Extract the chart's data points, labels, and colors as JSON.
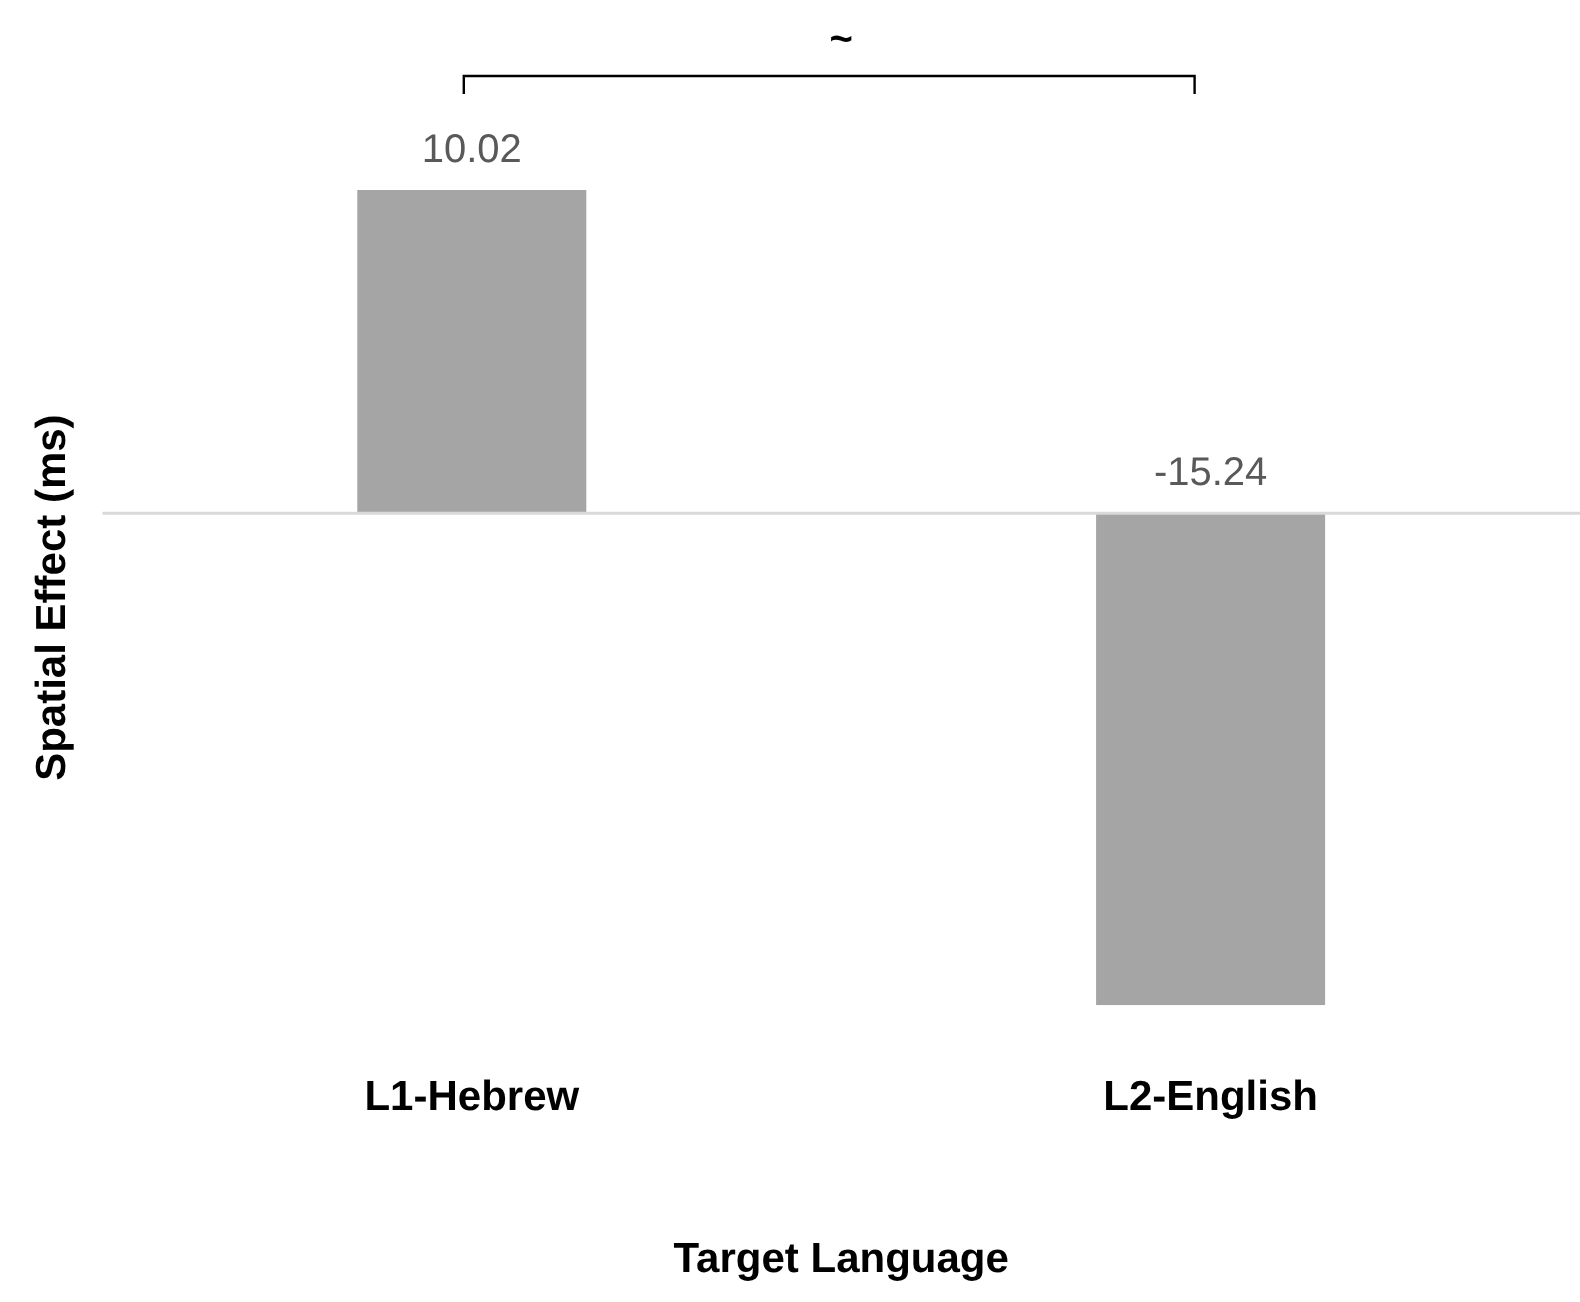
{
  "chart_data": {
    "type": "bar",
    "xlabel": "Target Language",
    "ylabel": "Spatial Effect (ms)",
    "categories": [
      "L1-Hebrew",
      "L2-English"
    ],
    "values": [
      10.02,
      -15.24
    ],
    "color": "#a5a5a5",
    "tick_labels": "x",
    "grid": false,
    "legend": false,
    "data_labels": true,
    "annotations": [
      "~"
    ]
  }
}
